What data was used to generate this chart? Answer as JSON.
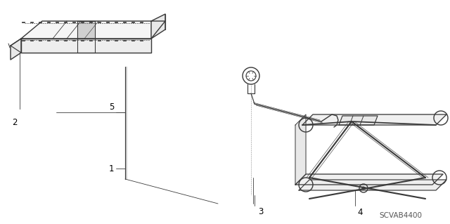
{
  "bg_color": "#ffffff",
  "line_color": "#3a3a3a",
  "label_color": "#000000",
  "label_fontsize": 8.5,
  "code_text": "SCVAB4400",
  "code_fontsize": 7.5,
  "lw": 0.85
}
